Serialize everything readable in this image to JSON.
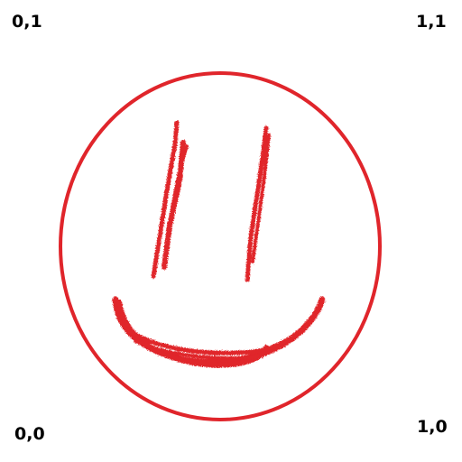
{
  "corner_labels": {
    "top_left": "0,1",
    "top_right": "1,1",
    "bottom_left": "0,0",
    "bottom_right": "1,0"
  },
  "colors": {
    "stroke": "#e0252b",
    "label": "#000000",
    "background": "#ffffff"
  }
}
